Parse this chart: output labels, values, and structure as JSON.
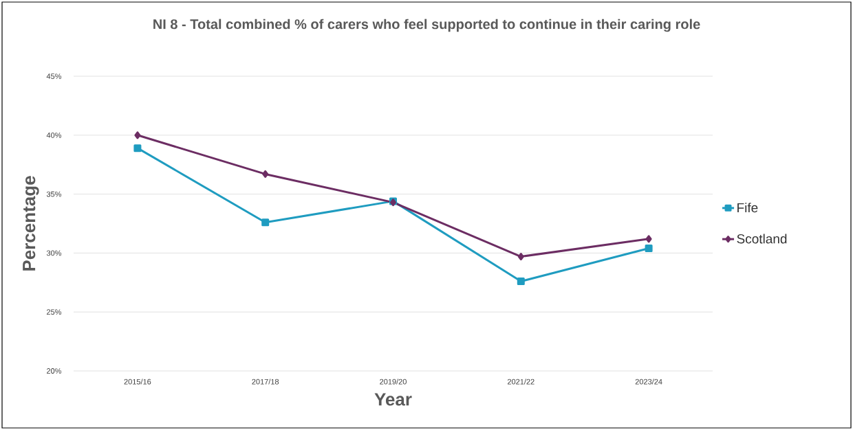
{
  "chart_data": {
    "type": "line",
    "title": "NI 8 - Total combined % of carers who feel supported to continue in their caring role",
    "xlabel": "Year",
    "ylabel": "Percentage",
    "categories": [
      "2015/16",
      "2017/18",
      "2019/20",
      "2021/22",
      "2023/24"
    ],
    "series": [
      {
        "name": "Fife",
        "color": "#1f9cc0",
        "marker": "square",
        "values": [
          38.9,
          32.6,
          34.4,
          27.6,
          30.4
        ]
      },
      {
        "name": "Scotland",
        "color": "#6c2d63",
        "marker": "diamond",
        "values": [
          40.0,
          36.7,
          34.3,
          29.7,
          31.2
        ]
      }
    ],
    "ylim": [
      20,
      45
    ],
    "yticks": [
      {
        "value": 20,
        "label": "20%"
      },
      {
        "value": 25,
        "label": "25%"
      },
      {
        "value": 30,
        "label": "30%"
      },
      {
        "value": 35,
        "label": "35%"
      },
      {
        "value": 40,
        "label": "40%"
      },
      {
        "value": 45,
        "label": "45%"
      }
    ],
    "grid": "y",
    "legend": "right",
    "line_style": "solid"
  }
}
